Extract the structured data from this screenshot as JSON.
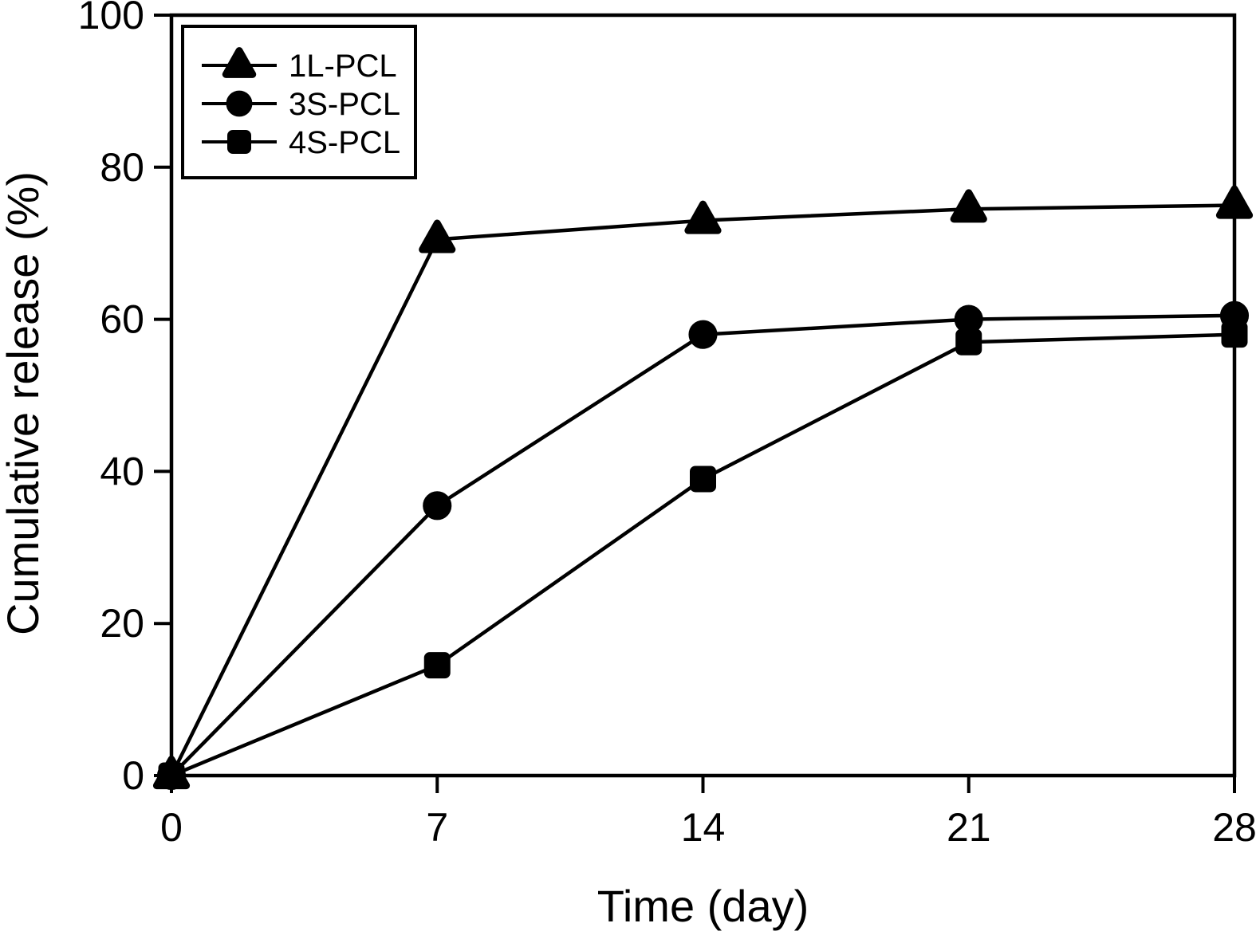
{
  "figure": {
    "background_color": "#ffffff",
    "axis_color": "#000000"
  },
  "chart_data": {
    "type": "line",
    "title": "",
    "xlabel": "Time (day)",
    "ylabel": "Cumulative release (%)",
    "xlim": [
      0,
      28
    ],
    "ylim": [
      0,
      100
    ],
    "x_ticks": [
      "0",
      "7",
      "14",
      "21",
      "28"
    ],
    "y_ticks": [
      "0",
      "20",
      "40",
      "60",
      "80",
      "100"
    ],
    "x_tick_values": [
      0,
      7,
      14,
      21,
      28
    ],
    "y_tick_values": [
      0,
      20,
      40,
      60,
      80,
      100
    ],
    "grid": false,
    "box": true,
    "legend_position": "upper-left",
    "series": [
      {
        "name": "1L-PCL",
        "marker": "triangle",
        "color": "#000000",
        "x": [
          0,
          7,
          14,
          21,
          28
        ],
        "y": [
          0,
          70.5,
          73,
          74.5,
          75
        ]
      },
      {
        "name": "3S-PCL",
        "marker": "circle",
        "color": "#000000",
        "x": [
          0,
          7,
          14,
          21,
          28
        ],
        "y": [
          0,
          35.5,
          58,
          60,
          60.5
        ]
      },
      {
        "name": "4S-PCL",
        "marker": "square",
        "color": "#000000",
        "x": [
          0,
          7,
          14,
          21,
          28
        ],
        "y": [
          0,
          14.5,
          39,
          57,
          58
        ]
      }
    ]
  }
}
